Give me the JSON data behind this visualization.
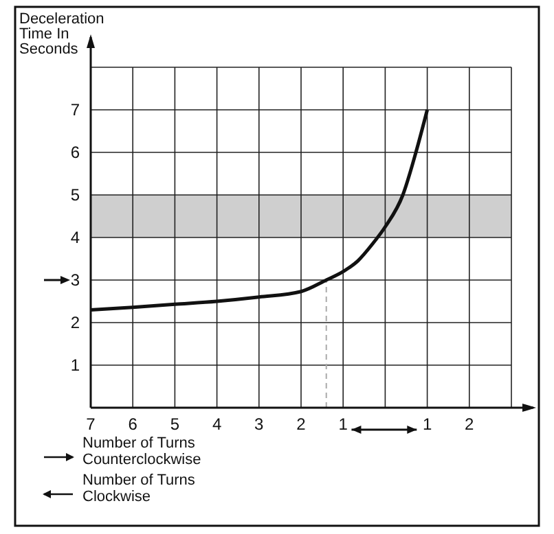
{
  "chart_data": {
    "type": "line",
    "ylabel": "Deceleration Time In Seconds",
    "x": [
      -7,
      -6,
      -5,
      -4,
      -3,
      -2,
      -1.4,
      -1,
      -0.65,
      -0.3,
      0,
      0.42,
      0.73,
      1
    ],
    "series": [
      {
        "color": "#111111",
        "values": [
          2.3,
          2.36,
          2.43,
          2.5,
          2.6,
          2.73,
          3,
          3.2,
          3.45,
          3.85,
          4.25,
          5,
          6,
          7
        ]
      }
    ],
    "xlim": [
      -7,
      3
    ],
    "xticks": [
      {
        "value": -7,
        "label": "7"
      },
      {
        "value": -6,
        "label": "6"
      },
      {
        "value": -5,
        "label": "5"
      },
      {
        "value": -4,
        "label": "4"
      },
      {
        "value": -3,
        "label": "3"
      },
      {
        "value": -2,
        "label": "2"
      },
      {
        "value": -1,
        "label": "1"
      },
      {
        "value": 0,
        "label": null
      },
      {
        "value": 1,
        "label": "1"
      },
      {
        "value": 2,
        "label": "2"
      },
      {
        "value": 3,
        "label": null
      }
    ],
    "ylim": [
      0,
      8
    ],
    "yticks": [
      {
        "value": 0,
        "label": null
      },
      1,
      2,
      3,
      4,
      5,
      6,
      7,
      {
        "value": 8,
        "label": null
      }
    ],
    "grid": true,
    "bands": [
      {
        "axis": "y",
        "from": 4,
        "to": 5,
        "color": "#cfcfcf"
      }
    ],
    "ref_lines": [
      {
        "axis": "x",
        "value": -1.4,
        "line_style": "dashed",
        "color": "#aaaaaa"
      }
    ],
    "annotations": [
      "Number of Turns\nCounterclockwise",
      "Number of Turns\nClockwise"
    ]
  }
}
